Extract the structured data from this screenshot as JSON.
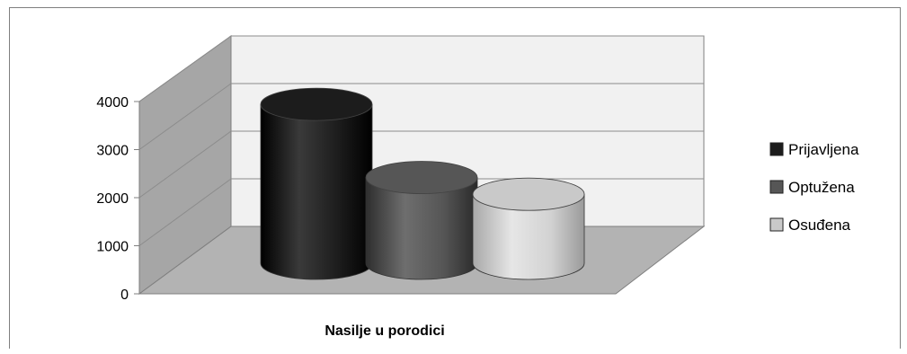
{
  "chart_data": {
    "type": "bar",
    "style": "3d-cylinder",
    "categories": [
      "Nasilje u porodici"
    ],
    "series": [
      {
        "name": "Prijavljena",
        "values": [
          3800
        ],
        "color": "#1c1c1c"
      },
      {
        "name": "Optužena",
        "values": [
          2050
        ],
        "color": "#565656"
      },
      {
        "name": "Osuđena",
        "values": [
          1650
        ],
        "color": "#c9c9c9"
      }
    ],
    "yticks": [
      0,
      1000,
      2000,
      3000,
      4000
    ],
    "ylim": [
      0,
      4000
    ],
    "xlabel": "Nasilje u porodici",
    "ylabel": "",
    "title": "",
    "grid": true,
    "legend": {
      "position": "right"
    },
    "colors": {
      "wall": "#f1f1f1",
      "side_wall": "#a6a6a6",
      "floor": "#b3b3b3",
      "gridline": "#8c8c8c"
    }
  }
}
